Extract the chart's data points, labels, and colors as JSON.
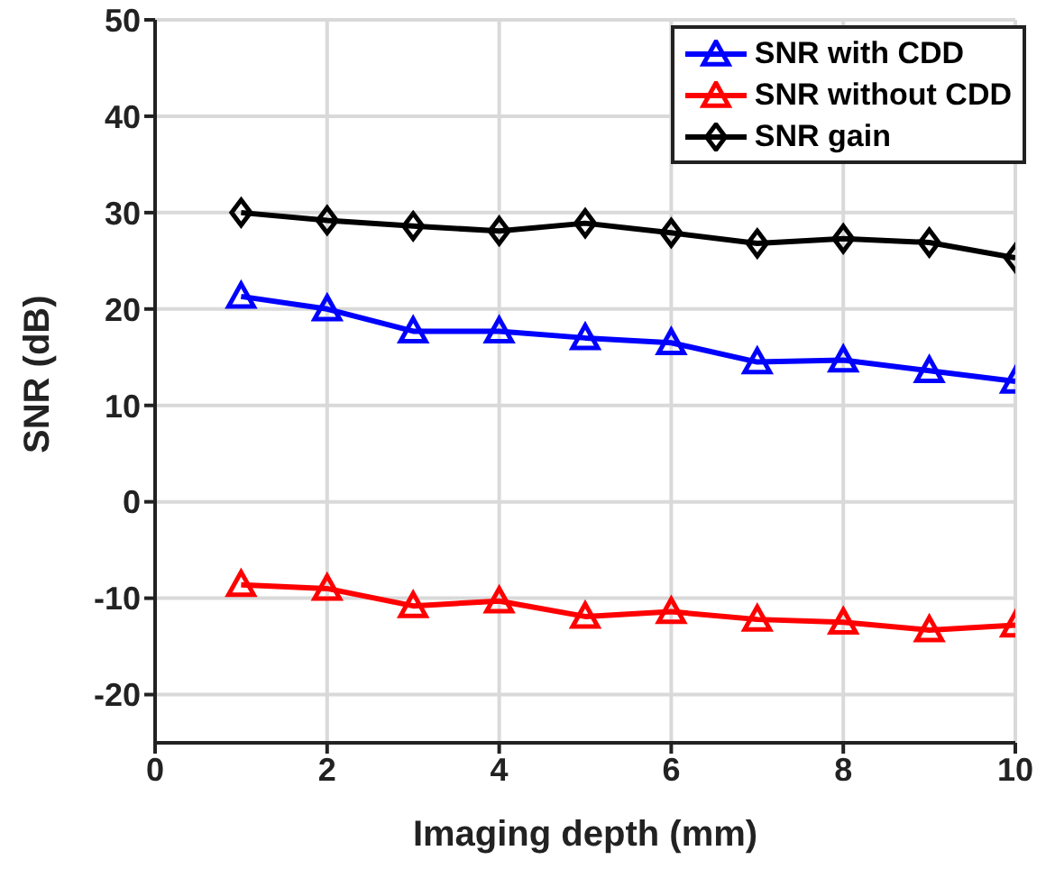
{
  "chart_data": {
    "type": "line",
    "xlabel": "Imaging depth (mm)",
    "ylabel": "SNR (dB)",
    "x": [
      1,
      2,
      3,
      4,
      5,
      6,
      7,
      8,
      9,
      10
    ],
    "series": [
      {
        "name": "SNR with CDD",
        "color": "#0000ff",
        "marker": "triangle",
        "values": [
          21.3,
          20,
          17.7,
          17.7,
          17,
          16.5,
          14.5,
          14.7,
          13.6,
          12.5
        ]
      },
      {
        "name": "SNR without CDD",
        "color": "#ff0000",
        "marker": "triangle",
        "values": [
          -8.6,
          -9,
          -10.8,
          -10.3,
          -11.9,
          -11.4,
          -12.2,
          -12.5,
          -13.3,
          -12.8
        ]
      },
      {
        "name": "SNR gain",
        "color": "#000000",
        "marker": "diamond",
        "values": [
          30,
          29.2,
          28.6,
          28.1,
          28.9,
          27.9,
          26.8,
          27.3,
          26.9,
          25.3
        ]
      }
    ],
    "xlim": [
      0,
      10
    ],
    "xticks": [
      0,
      2,
      4,
      6,
      8,
      10
    ],
    "ylim": [
      -25,
      50
    ],
    "yticks": [
      -20,
      -10,
      0,
      10,
      20,
      30,
      40,
      50
    ],
    "grid": true,
    "legend": "top right",
    "line_style": "solid"
  }
}
